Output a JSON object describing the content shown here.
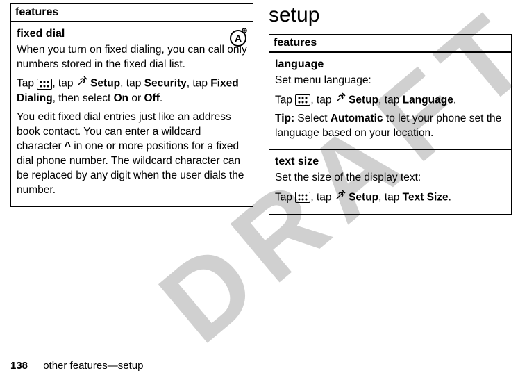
{
  "watermark": "DRAFT",
  "leftTable": {
    "header": "features",
    "rows": [
      {
        "title": "fixed dial",
        "body_parts": [
          {
            "t": "text",
            "v": "When you turn on fixed dialing, you can call only numbers stored in the fixed dial list."
          },
          {
            "t": "br"
          },
          {
            "t": "text",
            "v": "Tap "
          },
          {
            "t": "appicon"
          },
          {
            "t": "text",
            "v": ", tap "
          },
          {
            "t": "tools"
          },
          {
            "t": "text",
            "v": " "
          },
          {
            "t": "bold",
            "v": "Setup"
          },
          {
            "t": "text",
            "v": ", tap "
          },
          {
            "t": "bold",
            "v": "Security"
          },
          {
            "t": "text",
            "v": ", tap "
          },
          {
            "t": "bold",
            "v": "Fixed Dialing"
          },
          {
            "t": "text",
            "v": ", then select "
          },
          {
            "t": "bold",
            "v": "On"
          },
          {
            "t": "text",
            "v": " or "
          },
          {
            "t": "bold",
            "v": "Off"
          },
          {
            "t": "text",
            "v": "."
          },
          {
            "t": "br"
          },
          {
            "t": "text",
            "v": "You edit fixed dial entries just like an address book contact. You can enter a wildcard character "
          },
          {
            "t": "bold",
            "v": "^"
          },
          {
            "t": "text",
            "v": " in one or more positions for a fixed dial phone number. The wildcard character can be replaced by any digit when the user dials the number."
          }
        ],
        "badge": true
      }
    ]
  },
  "rightHeading": "setup",
  "rightTable": {
    "header": "features",
    "rows": [
      {
        "title": "language",
        "body_parts": [
          {
            "t": "text",
            "v": "Set menu language:"
          },
          {
            "t": "br"
          },
          {
            "t": "text",
            "v": "Tap "
          },
          {
            "t": "appicon"
          },
          {
            "t": "text",
            "v": ", tap "
          },
          {
            "t": "tools"
          },
          {
            "t": "text",
            "v": " "
          },
          {
            "t": "bold",
            "v": "Setup"
          },
          {
            "t": "text",
            "v": ", tap "
          },
          {
            "t": "bold",
            "v": "Language"
          },
          {
            "t": "text",
            "v": "."
          },
          {
            "t": "br"
          },
          {
            "t": "bold",
            "v": "Tip:"
          },
          {
            "t": "text",
            "v": " Select "
          },
          {
            "t": "bold",
            "v": "Automatic"
          },
          {
            "t": "text",
            "v": " to let your phone set the language based on your location."
          }
        ]
      },
      {
        "title": "text size",
        "body_parts": [
          {
            "t": "text",
            "v": "Set the size of the display text:"
          },
          {
            "t": "br"
          },
          {
            "t": "text",
            "v": "Tap "
          },
          {
            "t": "appicon"
          },
          {
            "t": "text",
            "v": ", tap "
          },
          {
            "t": "tools"
          },
          {
            "t": "text",
            "v": " "
          },
          {
            "t": "bold",
            "v": "Setup"
          },
          {
            "t": "text",
            "v": ", tap "
          },
          {
            "t": "bold",
            "v": "Text Size"
          },
          {
            "t": "text",
            "v": "."
          }
        ]
      }
    ]
  },
  "footer": {
    "page": "138",
    "text": "other features—setup"
  }
}
